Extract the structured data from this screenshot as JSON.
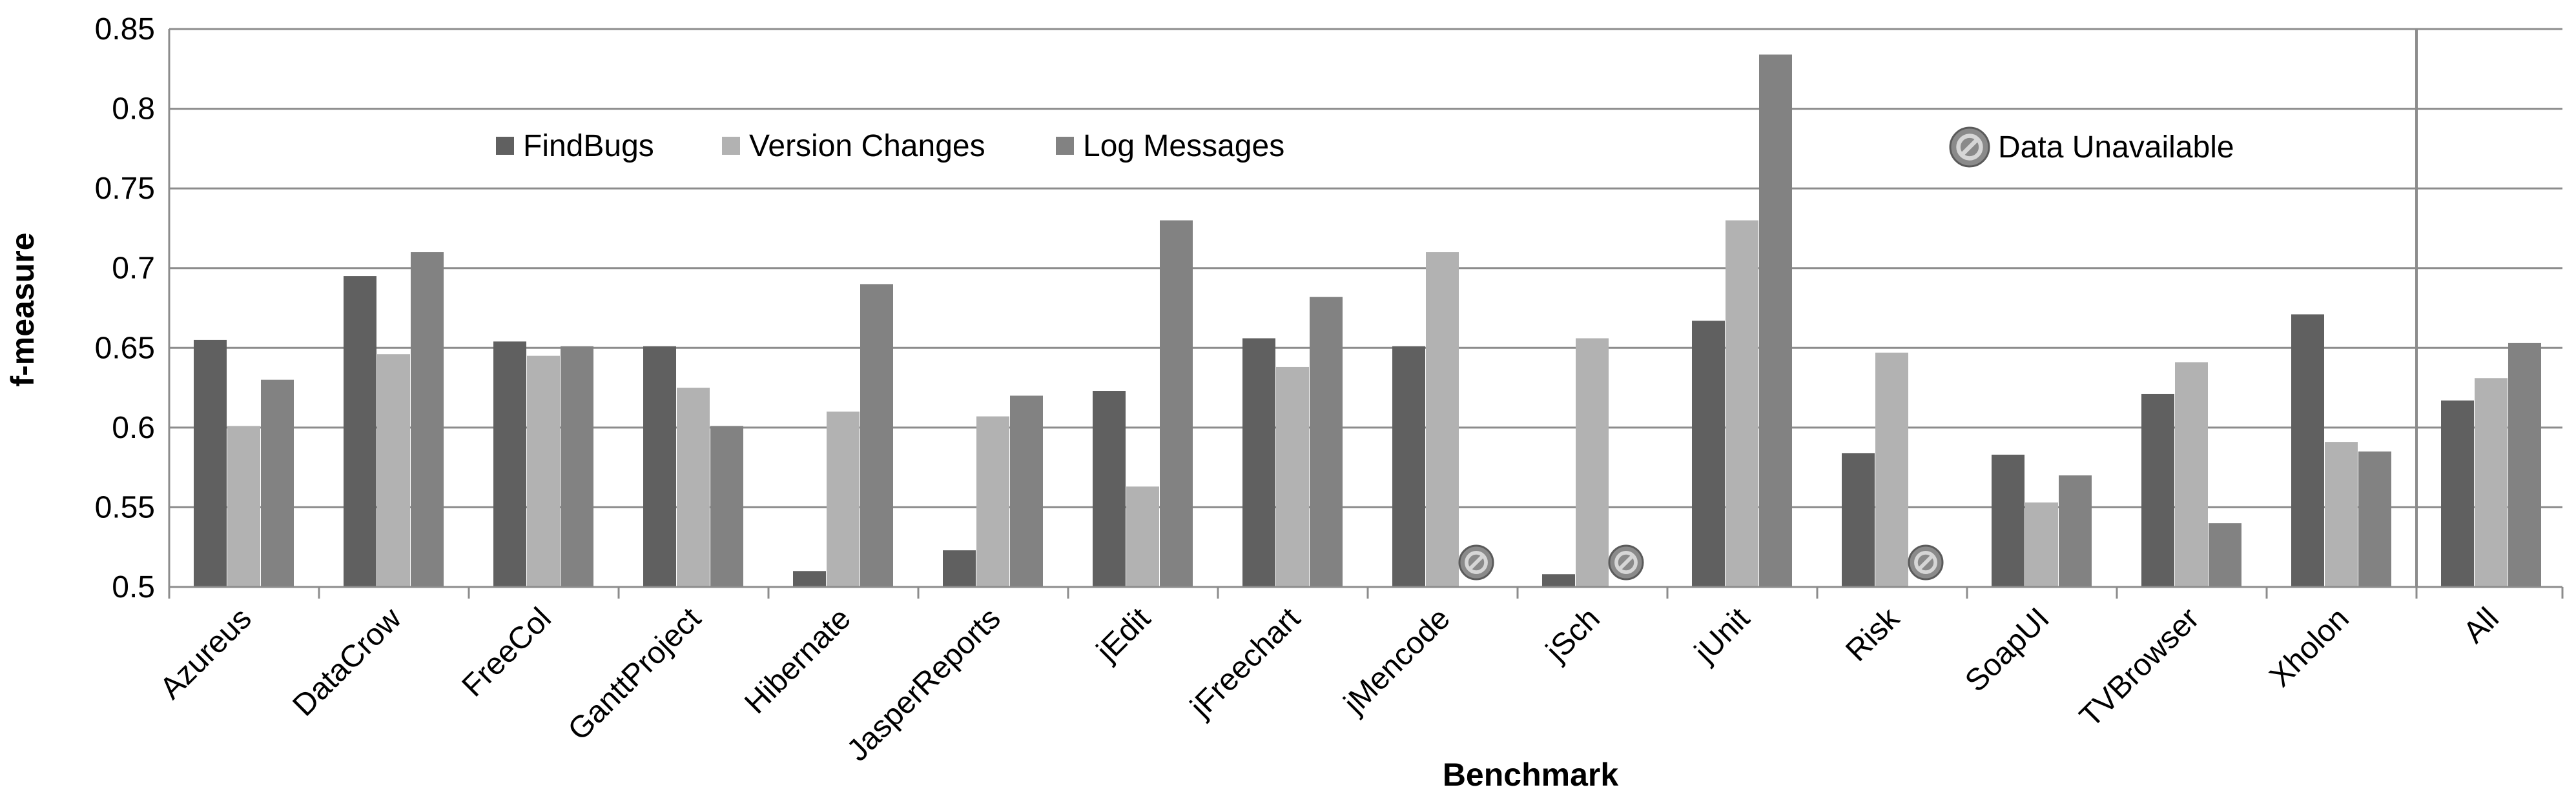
{
  "chart_data": {
    "type": "bar",
    "xlabel": "Benchmark",
    "ylabel": "f-measure",
    "ylim": [
      0.5,
      0.85
    ],
    "yticks": [
      "0.5",
      "0.55",
      "0.6",
      "0.65",
      "0.7",
      "0.75",
      "0.8",
      "0.85"
    ],
    "categories": [
      "Azureus",
      "DataCrow",
      "FreeCol",
      "GanttProject",
      "Hibernate",
      "JasperReports",
      "jEdit",
      "jFreechart",
      "jMencode",
      "jSch",
      "jUnit",
      "Risk",
      "SoapUI",
      "TVBrowser",
      "Xholon",
      "All"
    ],
    "series": [
      {
        "name": "FindBugs",
        "color": "#606060",
        "values": [
          0.655,
          0.695,
          0.654,
          0.651,
          0.51,
          0.523,
          0.623,
          0.656,
          0.651,
          0.508,
          0.667,
          0.584,
          0.583,
          0.621,
          0.671,
          0.617
        ]
      },
      {
        "name": "Version Changes",
        "color": "#b2b2b2",
        "values": [
          0.601,
          0.646,
          0.645,
          0.625,
          0.61,
          0.607,
          0.563,
          0.638,
          0.71,
          0.656,
          0.73,
          0.647,
          0.553,
          0.641,
          0.591,
          0.631
        ]
      },
      {
        "name": "Log Messages",
        "color": "#828282",
        "values": [
          0.63,
          0.71,
          0.651,
          0.601,
          0.69,
          0.62,
          0.73,
          0.682,
          null,
          null,
          0.834,
          null,
          0.57,
          0.54,
          0.585,
          0.653
        ]
      }
    ],
    "unavailable_label": "Data Unavailable",
    "unavailable_marks": [
      {
        "category": "jMencode",
        "series": "Log Messages"
      },
      {
        "category": "jSch",
        "series": "Log Messages"
      },
      {
        "category": "Risk",
        "series": "Log Messages"
      }
    ],
    "separator_before": "All",
    "grid": true,
    "legend_position": "top-left"
  }
}
